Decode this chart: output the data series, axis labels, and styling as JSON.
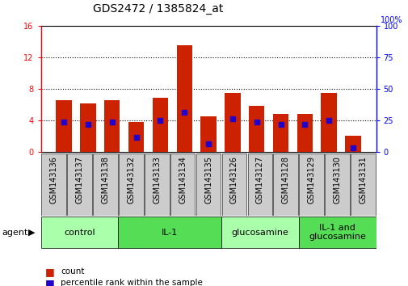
{
  "title": "GDS2472 / 1385824_at",
  "samples": [
    "GSM143136",
    "GSM143137",
    "GSM143138",
    "GSM143132",
    "GSM143133",
    "GSM143134",
    "GSM143135",
    "GSM143126",
    "GSM143127",
    "GSM143128",
    "GSM143129",
    "GSM143130",
    "GSM143131"
  ],
  "counts": [
    6.5,
    6.1,
    6.5,
    3.8,
    6.8,
    13.5,
    4.5,
    7.5,
    5.8,
    4.8,
    4.8,
    7.5,
    2.0
  ],
  "percentile_ranks": [
    3.8,
    3.5,
    3.8,
    1.8,
    4.0,
    5.0,
    1.0,
    4.2,
    3.8,
    3.5,
    3.5,
    4.0,
    0.5
  ],
  "ylim_left": [
    0,
    16
  ],
  "ylim_right": [
    0,
    100
  ],
  "yticks_left": [
    0,
    4,
    8,
    12,
    16
  ],
  "yticks_right": [
    0,
    25,
    50,
    75,
    100
  ],
  "bar_color": "#cc2200",
  "marker_color": "#2200cc",
  "bg_color": "#ffffff",
  "xticklabel_bg": "#cccccc",
  "groups": [
    {
      "label": "control",
      "indices": [
        0,
        1,
        2
      ],
      "color": "#aaffaa"
    },
    {
      "label": "IL-1",
      "indices": [
        3,
        4,
        5,
        6
      ],
      "color": "#55dd55"
    },
    {
      "label": "glucosamine",
      "indices": [
        7,
        8,
        9
      ],
      "color": "#aaffaa"
    },
    {
      "label": "IL-1 and\nglucosamine",
      "indices": [
        10,
        11,
        12
      ],
      "color": "#55dd55"
    }
  ],
  "agent_label": "agent",
  "legend_count_label": "count",
  "legend_pct_label": "percentile rank within the sample",
  "title_fontsize": 10,
  "tick_fontsize": 7,
  "label_fontsize": 8,
  "group_fontsize": 8,
  "legend_fontsize": 7.5
}
